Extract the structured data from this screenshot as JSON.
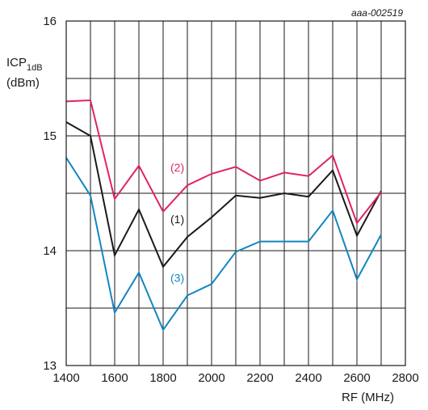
{
  "chart_data": {
    "type": "line",
    "reference": "aaa-002519",
    "ylabel_main": "ICP",
    "ylabel_sub": "1dB",
    "ylabel_unit": "(dBm)",
    "xlabel": "RF (MHz)",
    "xlim": [
      1400,
      2800
    ],
    "ylim": [
      13,
      16
    ],
    "xticks": [
      1400,
      1600,
      1800,
      2000,
      2200,
      2400,
      2600,
      2800
    ],
    "yticks": [
      13,
      14,
      15,
      16
    ],
    "grid": true,
    "x": [
      1400,
      1500,
      1600,
      1700,
      1800,
      1900,
      2000,
      2100,
      2200,
      2300,
      2400,
      2500,
      2600,
      2700
    ],
    "series": [
      {
        "name": "(1)",
        "color": "#1a1a1a",
        "values": [
          15.12,
          15.0,
          13.96,
          14.36,
          13.86,
          14.12,
          14.29,
          14.48,
          14.46,
          14.5,
          14.47,
          14.7,
          14.13,
          14.52
        ],
        "label_at": [
          1830,
          14.24
        ]
      },
      {
        "name": "(2)",
        "color": "#e0245e",
        "values": [
          15.3,
          15.31,
          14.45,
          14.74,
          14.34,
          14.57,
          14.67,
          14.73,
          14.61,
          14.68,
          14.65,
          14.83,
          14.24,
          14.51
        ],
        "label_at": [
          1830,
          14.69
        ]
      },
      {
        "name": "(3)",
        "color": "#1386c0",
        "values": [
          14.81,
          14.48,
          13.46,
          13.81,
          13.31,
          13.61,
          13.71,
          13.99,
          14.08,
          14.08,
          14.08,
          14.35,
          13.75,
          14.14
        ],
        "label_at": [
          1830,
          13.73
        ]
      }
    ]
  }
}
